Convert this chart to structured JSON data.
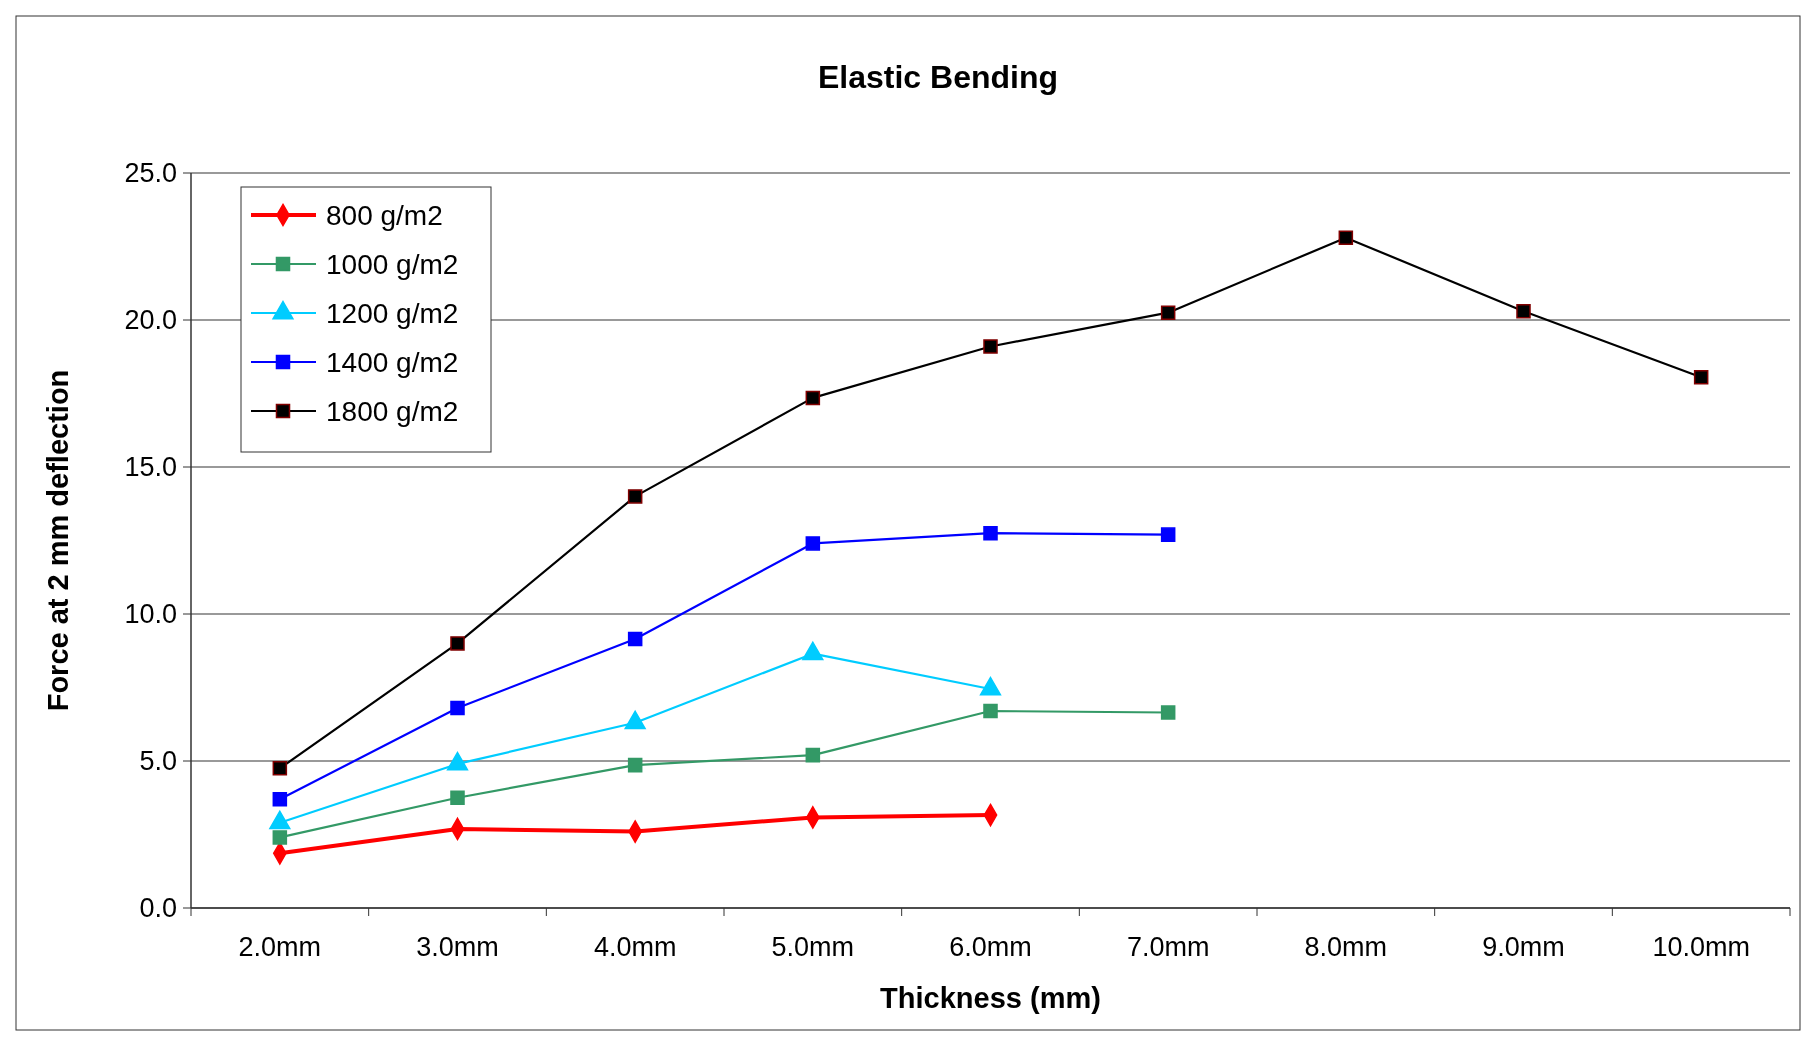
{
  "chart_data": {
    "type": "line",
    "title": "Elastic Bending",
    "xlabel": "Thickness (mm)",
    "ylabel": "Force at 2 mm deflection",
    "categories": [
      "2.0mm",
      "3.0mm",
      "4.0mm",
      "5.0mm",
      "6.0mm",
      "7.0mm",
      "8.0mm",
      "9.0mm",
      "10.0mm"
    ],
    "ylim": [
      0,
      25
    ],
    "yticks": [
      {
        "value": 0,
        "label": "0.0"
      },
      {
        "value": 5,
        "label": "5.0"
      },
      {
        "value": 10,
        "label": "10.0"
      },
      {
        "value": 15,
        "label": "15.0"
      },
      {
        "value": 20,
        "label": "20.0"
      },
      {
        "value": 25,
        "label": "25.0"
      }
    ],
    "grid": "y",
    "legend": "top left",
    "series": [
      {
        "name": "800 g/m2",
        "color": "#ff0000",
        "marker": "diamond",
        "values": [
          1.86,
          2.69,
          2.6,
          3.08,
          3.16,
          null,
          null,
          null,
          null
        ]
      },
      {
        "name": "1000 g/m2",
        "color": "#339966",
        "marker": "square",
        "values": [
          2.4,
          3.75,
          4.86,
          5.2,
          6.7,
          6.65,
          null,
          null,
          null
        ]
      },
      {
        "name": "1200 g/m2",
        "color": "#00ccff",
        "marker": "triangle",
        "values": [
          2.9,
          4.9,
          6.3,
          8.65,
          7.45,
          null,
          null,
          null,
          null
        ]
      },
      {
        "name": "1400 g/m2",
        "color": "#0000ff",
        "marker": "square",
        "values": [
          3.7,
          6.8,
          9.15,
          12.4,
          12.75,
          12.7,
          null,
          null,
          null
        ]
      },
      {
        "name": "1800 g/m2",
        "color": "#000000",
        "marker": "square",
        "values": [
          4.75,
          9.0,
          14.0,
          17.35,
          19.1,
          20.25,
          22.8,
          20.3,
          18.05
        ]
      }
    ]
  }
}
